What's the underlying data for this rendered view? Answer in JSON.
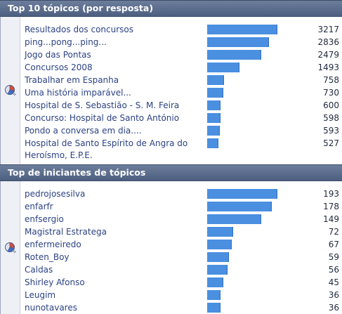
{
  "top_topics": {
    "title": "Top 10 tópicos (por resposta)",
    "icon": "pie-chart-icon",
    "items": [
      {
        "label": "Resultados dos concursos",
        "value": 3217
      },
      {
        "label": "ping...pong...ping...",
        "value": 2836
      },
      {
        "label": "Jogo das Pontas",
        "value": 2479
      },
      {
        "label": "Concursos 2008",
        "value": 1493
      },
      {
        "label": "Trabalhar em Espanha",
        "value": 758
      },
      {
        "label": "Uma história imparável...",
        "value": 730
      },
      {
        "label": "Hospital de S. Sebastião - S. M. Feira",
        "value": 600
      },
      {
        "label": "Concurso: Hospital de Santo António",
        "value": 598
      },
      {
        "label": "Pondo a conversa em dia....",
        "value": 593
      },
      {
        "label": "Hospital de Santo Espírito de Angra do Heroísmo, E.P.E.",
        "value": 527
      }
    ]
  },
  "top_starters": {
    "title": "Top de iniciantes de tópicos",
    "icon": "pie-chart-icon",
    "items": [
      {
        "label": "pedrojosesilva",
        "value": 193
      },
      {
        "label": "enfarfr",
        "value": 178
      },
      {
        "label": "enfsergio",
        "value": 149
      },
      {
        "label": "Magistral Estratega",
        "value": 72
      },
      {
        "label": "enfermeiredo",
        "value": 67
      },
      {
        "label": "Roten_Boy",
        "value": 59
      },
      {
        "label": "Caldas",
        "value": 56
      },
      {
        "label": "Shirley Afonso",
        "value": 45
      },
      {
        "label": "Leugim",
        "value": 36
      },
      {
        "label": "nunotavares",
        "value": 36
      }
    ]
  },
  "colors": {
    "header": "#5a6b8c",
    "bar": "#4a8fe0",
    "link": "#2b4283"
  }
}
